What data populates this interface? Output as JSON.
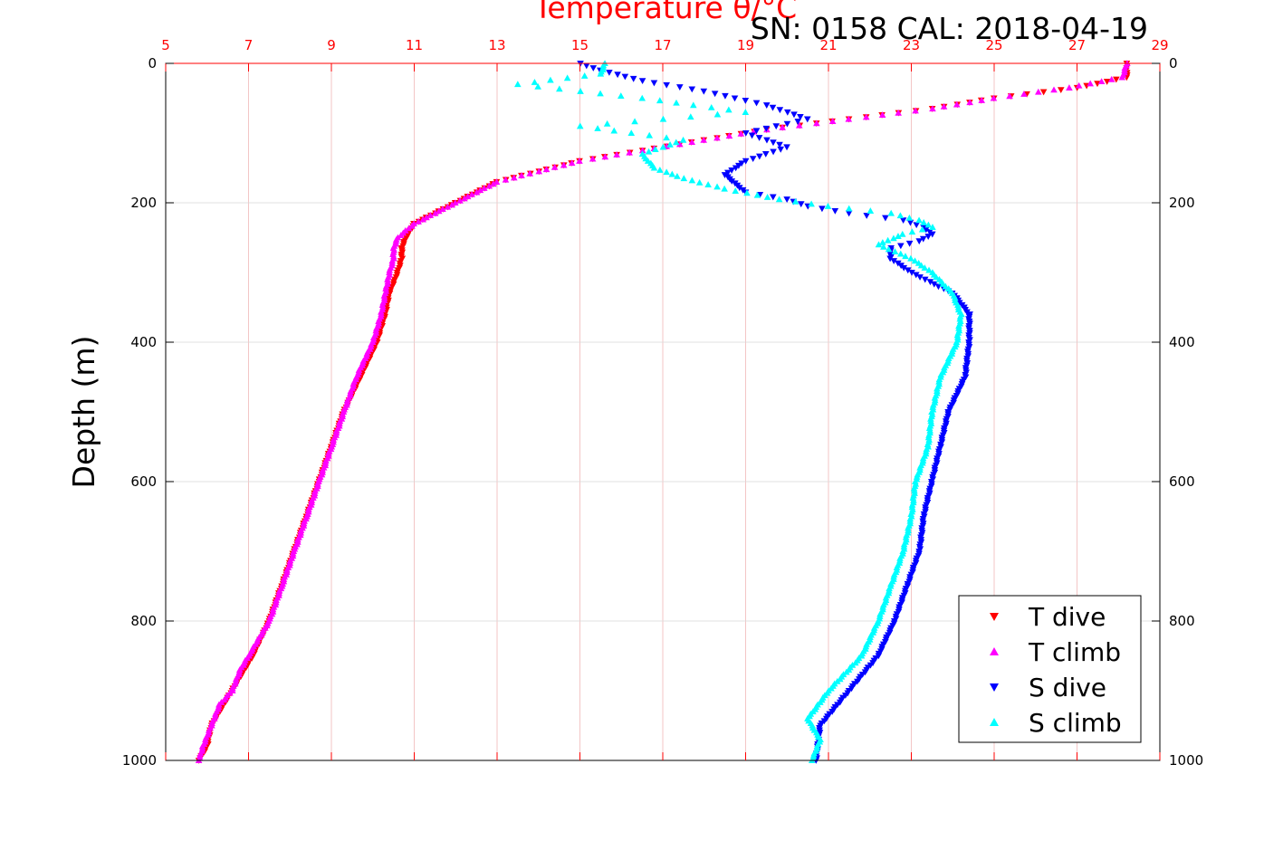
{
  "chart_data": {
    "type": "scatter",
    "annotation": "SN: 0158  CAL: 2018-04-19",
    "title": "Temperature θ/°C",
    "ylabel": "Depth (m)",
    "x_top": {
      "label": "Temperature θ/°C",
      "range": [
        5,
        29
      ],
      "ticks": [
        5,
        7,
        9,
        11,
        13,
        15,
        17,
        19,
        21,
        23,
        25,
        27,
        29
      ],
      "color": "#ff0000",
      "grid": true
    },
    "y": {
      "range": [
        0,
        1000
      ],
      "reversed": true,
      "ticks": [
        0,
        200,
        400,
        600,
        800,
        1000
      ],
      "grid": true
    },
    "legend": {
      "position": "bottom-right",
      "entries": [
        "T dive",
        "T climb",
        "S dive",
        "S climb"
      ]
    },
    "series": [
      {
        "name": "T dive",
        "color": "#ff0000",
        "marker": "triangle-down",
        "depth": [
          0,
          20,
          35,
          50,
          65,
          80,
          95,
          110,
          125,
          140,
          155,
          170,
          185,
          200,
          215,
          230,
          250,
          265,
          280,
          300,
          330,
          360,
          400,
          450,
          500,
          550,
          600,
          650,
          700,
          750,
          800,
          850,
          870,
          900,
          920,
          950,
          980,
          1000
        ],
        "temperature": [
          28.2,
          28.2,
          27.0,
          25.0,
          23.5,
          21.5,
          19.5,
          18.0,
          16.5,
          15.0,
          14.0,
          13.0,
          12.5,
          12.0,
          11.5,
          11.0,
          10.8,
          10.7,
          10.7,
          10.6,
          10.4,
          10.3,
          10.1,
          9.7,
          9.3,
          9.0,
          8.7,
          8.4,
          8.1,
          7.8,
          7.5,
          7.1,
          6.9,
          6.6,
          6.4,
          6.1,
          6.0,
          5.8
        ]
      },
      {
        "name": "T climb",
        "color": "#ff00ff",
        "marker": "triangle-up",
        "depth": [
          0,
          20,
          35,
          50,
          65,
          80,
          95,
          110,
          125,
          140,
          155,
          170,
          185,
          200,
          215,
          230,
          250,
          265,
          280,
          300,
          330,
          360,
          400,
          450,
          500,
          550,
          600,
          650,
          700,
          750,
          800,
          850,
          870,
          900,
          920,
          950,
          980,
          1000
        ],
        "temperature": [
          28.2,
          28.1,
          26.8,
          25.0,
          23.5,
          21.5,
          19.5,
          18.0,
          16.5,
          15.0,
          14.0,
          13.0,
          12.5,
          12.0,
          11.5,
          11.0,
          10.6,
          10.5,
          10.5,
          10.4,
          10.3,
          10.2,
          10.0,
          9.6,
          9.3,
          9.0,
          8.7,
          8.4,
          8.1,
          7.8,
          7.5,
          7.0,
          6.8,
          6.6,
          6.3,
          6.1,
          5.9,
          5.8
        ]
      },
      {
        "name": "S dive",
        "color": "#0000ff",
        "marker": "triangle-down",
        "depth": [
          0,
          10,
          25,
          40,
          60,
          80,
          100,
          120,
          140,
          160,
          175,
          185,
          195,
          205,
          215,
          225,
          235,
          245,
          255,
          265,
          280,
          300,
          330,
          360,
          400,
          450,
          500,
          550,
          600,
          650,
          700,
          750,
          800,
          850,
          900,
          950,
          1000
        ],
        "temperature": [
          15.0,
          15.5,
          16.5,
          18.0,
          19.5,
          20.5,
          19.0,
          20.0,
          19.0,
          18.5,
          18.8,
          19.0,
          20.0,
          20.5,
          21.5,
          22.8,
          23.3,
          23.5,
          23.2,
          22.5,
          22.5,
          23.0,
          24.0,
          24.4,
          24.4,
          24.3,
          23.9,
          23.7,
          23.5,
          23.3,
          23.2,
          22.9,
          22.6,
          22.2,
          21.5,
          20.8,
          20.7
        ]
      },
      {
        "name": "S climb",
        "color": "#00ffff",
        "marker": "triangle-up",
        "depth": [
          0,
          15,
          30,
          50,
          70,
          90,
          110,
          130,
          150,
          165,
          180,
          195,
          205,
          215,
          225,
          235,
          245,
          260,
          280,
          300,
          330,
          360,
          400,
          450,
          500,
          550,
          600,
          650,
          700,
          750,
          800,
          850,
          900,
          940,
          970,
          1000
        ],
        "temperature": [
          15.6,
          15.5,
          13.5,
          16.5,
          19.0,
          15.0,
          17.5,
          16.5,
          16.8,
          17.5,
          18.5,
          19.8,
          21.0,
          22.5,
          23.2,
          23.5,
          22.8,
          22.2,
          23.0,
          23.5,
          24.0,
          24.2,
          24.1,
          23.7,
          23.5,
          23.4,
          23.1,
          23.0,
          22.8,
          22.5,
          22.2,
          21.8,
          21.0,
          20.5,
          20.8,
          20.6
        ]
      }
    ]
  }
}
